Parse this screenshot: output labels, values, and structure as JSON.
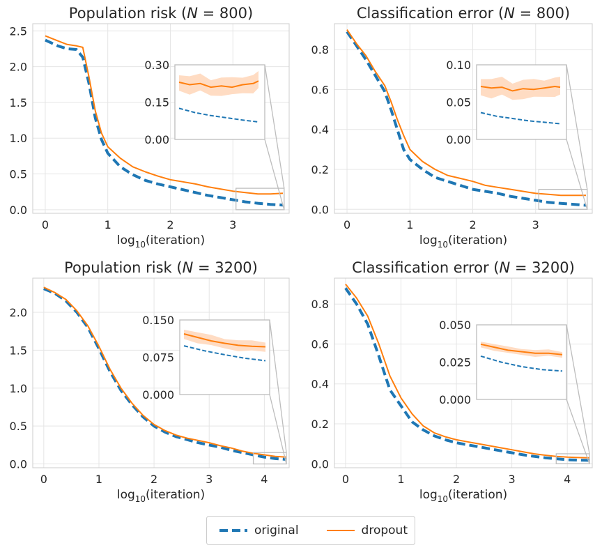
{
  "colors": {
    "original": "#1f77b4",
    "dropout": "#ff7f0e",
    "band": "#ffd6b8",
    "grid": "#e5e5e5",
    "frame": "#bdbdbd"
  },
  "legend": {
    "original": "original",
    "dropout": "dropout"
  },
  "chart_data": [
    {
      "type": "line",
      "title": "Population risk (N = 800)",
      "title_prefix": "Population risk (",
      "title_n": "N",
      "title_value": " = 800)",
      "xlabel_main": "log",
      "xlabel_sub": "10",
      "xlabel_suffix": "(iteration)",
      "xlim": [
        -0.2,
        3.9
      ],
      "ylim": [
        -0.05,
        2.6
      ],
      "xticks": [
        0,
        1,
        2,
        3
      ],
      "xtick_labels": [
        "0",
        "1",
        "2",
        "3"
      ],
      "yticks": [
        0,
        0.5,
        1,
        1.5,
        2,
        2.5
      ],
      "ytick_labels": [
        "0.0",
        "0.5",
        "1.0",
        "1.5",
        "2.0",
        "2.5"
      ],
      "series": [
        {
          "name": "original",
          "x": [
            0,
            0.2,
            0.35,
            0.5,
            0.6,
            0.7,
            0.8,
            0.9,
            1.0,
            1.2,
            1.4,
            1.6,
            1.8,
            2.0,
            2.2,
            2.4,
            2.6,
            2.8,
            3.0,
            3.2,
            3.4,
            3.6,
            3.8
          ],
          "y": [
            2.37,
            2.29,
            2.25,
            2.24,
            2.13,
            1.76,
            1.28,
            0.98,
            0.79,
            0.6,
            0.49,
            0.41,
            0.36,
            0.32,
            0.28,
            0.24,
            0.2,
            0.17,
            0.14,
            0.11,
            0.09,
            0.075,
            0.065
          ]
        },
        {
          "name": "dropout",
          "x": [
            0,
            0.2,
            0.35,
            0.5,
            0.6,
            0.7,
            0.8,
            0.9,
            1.0,
            1.2,
            1.4,
            1.6,
            1.8,
            2.0,
            2.2,
            2.4,
            2.6,
            2.8,
            3.0,
            3.2,
            3.4,
            3.6,
            3.8
          ],
          "y": [
            2.43,
            2.36,
            2.31,
            2.29,
            2.27,
            1.85,
            1.38,
            1.07,
            0.88,
            0.72,
            0.6,
            0.53,
            0.47,
            0.42,
            0.39,
            0.36,
            0.32,
            0.29,
            0.26,
            0.24,
            0.22,
            0.22,
            0.23
          ]
        }
      ],
      "inset": {
        "xlim": [
          3.05,
          3.82
        ],
        "ylim": [
          0,
          0.3
        ],
        "yticks": [
          0,
          0.15,
          0.3
        ],
        "ytick_labels": [
          "0.00",
          "0.15",
          "0.30"
        ],
        "original": {
          "x": [
            3.05,
            3.2,
            3.35,
            3.5,
            3.65,
            3.8
          ],
          "y": [
            0.125,
            0.108,
            0.096,
            0.087,
            0.078,
            0.07
          ]
        },
        "dropout": {
          "x": [
            3.05,
            3.15,
            3.25,
            3.35,
            3.45,
            3.55,
            3.65,
            3.75,
            3.8
          ],
          "y": [
            0.23,
            0.22,
            0.225,
            0.21,
            0.215,
            0.21,
            0.22,
            0.225,
            0.235
          ]
        },
        "band_width": 0.04
      }
    },
    {
      "type": "line",
      "title": "Classification error (N = 800)",
      "title_prefix": "Classification error (",
      "title_n": "N",
      "title_value": " = 800)",
      "xlabel_main": "log",
      "xlabel_sub": "10",
      "xlabel_suffix": "(iteration)",
      "xlim": [
        -0.2,
        3.9
      ],
      "ylim": [
        -0.02,
        0.93
      ],
      "xticks": [
        0,
        1,
        2,
        3
      ],
      "xtick_labels": [
        "0",
        "1",
        "2",
        "3"
      ],
      "yticks": [
        0,
        0.2,
        0.4,
        0.6,
        0.8
      ],
      "ytick_labels": [
        "0.0",
        "0.2",
        "0.4",
        "0.6",
        "0.8"
      ],
      "series": [
        {
          "name": "original",
          "x": [
            0,
            0.15,
            0.3,
            0.45,
            0.6,
            0.7,
            0.8,
            0.9,
            1.0,
            1.2,
            1.4,
            1.6,
            1.8,
            2.0,
            2.2,
            2.4,
            2.6,
            2.8,
            3.0,
            3.2,
            3.4,
            3.6,
            3.8
          ],
          "y": [
            0.89,
            0.82,
            0.75,
            0.67,
            0.59,
            0.5,
            0.4,
            0.3,
            0.25,
            0.2,
            0.16,
            0.14,
            0.12,
            0.1,
            0.09,
            0.08,
            0.065,
            0.055,
            0.045,
            0.035,
            0.03,
            0.025,
            0.02
          ]
        },
        {
          "name": "dropout",
          "x": [
            0,
            0.15,
            0.3,
            0.45,
            0.6,
            0.7,
            0.8,
            0.9,
            1.0,
            1.2,
            1.4,
            1.6,
            1.8,
            2.0,
            2.2,
            2.4,
            2.6,
            2.8,
            3.0,
            3.2,
            3.4,
            3.6,
            3.8
          ],
          "y": [
            0.9,
            0.83,
            0.77,
            0.69,
            0.62,
            0.54,
            0.45,
            0.37,
            0.3,
            0.24,
            0.2,
            0.17,
            0.155,
            0.14,
            0.12,
            0.11,
            0.1,
            0.09,
            0.08,
            0.075,
            0.07,
            0.07,
            0.07
          ]
        }
      ],
      "inset": {
        "xlim": [
          3.05,
          3.82
        ],
        "ylim": [
          0,
          0.1
        ],
        "yticks": [
          0,
          0.05,
          0.1
        ],
        "ytick_labels": [
          "0.00",
          "0.05",
          "0.10"
        ],
        "original": {
          "x": [
            3.05,
            3.2,
            3.35,
            3.5,
            3.65,
            3.8
          ],
          "y": [
            0.036,
            0.031,
            0.028,
            0.025,
            0.023,
            0.021
          ]
        },
        "dropout": {
          "x": [
            3.05,
            3.15,
            3.25,
            3.35,
            3.45,
            3.55,
            3.65,
            3.75,
            3.8
          ],
          "y": [
            0.071,
            0.069,
            0.07,
            0.065,
            0.068,
            0.067,
            0.069,
            0.071,
            0.07
          ]
        },
        "band_width": 0.014
      }
    },
    {
      "type": "line",
      "title": "Population risk (N = 3200)",
      "title_prefix": "Population risk (",
      "title_n": "N",
      "title_value": " = 3200)",
      "xlabel_main": "log",
      "xlabel_sub": "10",
      "xlabel_suffix": "(iteration)",
      "xlim": [
        -0.2,
        4.45
      ],
      "ylim": [
        -0.05,
        2.45
      ],
      "xticks": [
        0,
        1,
        2,
        3,
        4
      ],
      "xtick_labels": [
        "0",
        "1",
        "2",
        "3",
        "4"
      ],
      "yticks": [
        0,
        0.5,
        1,
        1.5,
        2
      ],
      "ytick_labels": [
        "0.0",
        "0.5",
        "1.0",
        "1.5",
        "2.0"
      ],
      "series": [
        {
          "name": "original",
          "x": [
            0,
            0.2,
            0.4,
            0.6,
            0.8,
            1.0,
            1.2,
            1.4,
            1.6,
            1.8,
            2.0,
            2.2,
            2.4,
            2.6,
            2.8,
            3.0,
            3.2,
            3.4,
            3.6,
            3.8,
            4.0,
            4.2,
            4.4
          ],
          "y": [
            2.31,
            2.25,
            2.15,
            2.0,
            1.8,
            1.52,
            1.22,
            0.97,
            0.78,
            0.62,
            0.5,
            0.42,
            0.36,
            0.32,
            0.28,
            0.25,
            0.22,
            0.18,
            0.15,
            0.12,
            0.09,
            0.07,
            0.06
          ]
        },
        {
          "name": "dropout",
          "x": [
            0,
            0.2,
            0.4,
            0.6,
            0.8,
            1.0,
            1.2,
            1.4,
            1.6,
            1.8,
            2.0,
            2.2,
            2.4,
            2.6,
            2.8,
            3.0,
            3.2,
            3.4,
            3.6,
            3.8,
            4.0,
            4.2,
            4.4
          ],
          "y": [
            2.33,
            2.26,
            2.17,
            2.02,
            1.82,
            1.55,
            1.25,
            1.0,
            0.8,
            0.64,
            0.52,
            0.44,
            0.38,
            0.34,
            0.31,
            0.28,
            0.24,
            0.21,
            0.17,
            0.14,
            0.12,
            0.1,
            0.09
          ]
        }
      ],
      "inset": {
        "xlim": [
          3.8,
          4.4
        ],
        "ylim": [
          0,
          0.15
        ],
        "yticks": [
          0,
          0.075,
          0.15
        ],
        "ytick_labels": [
          "0.000",
          "0.075",
          "0.150"
        ],
        "original": {
          "x": [
            3.8,
            3.95,
            4.1,
            4.25,
            4.4
          ],
          "y": [
            0.098,
            0.088,
            0.08,
            0.073,
            0.068
          ]
        },
        "dropout": {
          "x": [
            3.8,
            3.9,
            4.0,
            4.1,
            4.2,
            4.3,
            4.4
          ],
          "y": [
            0.122,
            0.115,
            0.108,
            0.103,
            0.099,
            0.097,
            0.096
          ]
        },
        "band_width": 0.012
      }
    },
    {
      "type": "line",
      "title": "Classification error (N = 3200)",
      "title_prefix": "Classification error (",
      "title_n": "N",
      "title_value": " = 3200)",
      "xlabel_main": "log",
      "xlabel_sub": "10",
      "xlabel_suffix": "(iteration)",
      "xlim": [
        -0.2,
        4.45
      ],
      "ylim": [
        -0.02,
        0.93
      ],
      "xticks": [
        0,
        1,
        2,
        3,
        4
      ],
      "xtick_labels": [
        "0",
        "1",
        "2",
        "3",
        "4"
      ],
      "yticks": [
        0,
        0.2,
        0.4,
        0.6,
        0.8
      ],
      "ytick_labels": [
        "0.0",
        "0.2",
        "0.4",
        "0.6",
        "0.8"
      ],
      "series": [
        {
          "name": "original",
          "x": [
            0,
            0.2,
            0.4,
            0.6,
            0.8,
            1.0,
            1.2,
            1.4,
            1.6,
            1.8,
            2.0,
            2.2,
            2.4,
            2.6,
            2.8,
            3.0,
            3.2,
            3.4,
            3.6,
            3.8,
            4.0,
            4.2,
            4.4
          ],
          "y": [
            0.88,
            0.8,
            0.7,
            0.54,
            0.37,
            0.29,
            0.21,
            0.17,
            0.14,
            0.12,
            0.105,
            0.095,
            0.085,
            0.075,
            0.065,
            0.055,
            0.045,
            0.037,
            0.03,
            0.025,
            0.02,
            0.018,
            0.017
          ]
        },
        {
          "name": "dropout",
          "x": [
            0,
            0.2,
            0.4,
            0.6,
            0.8,
            1.0,
            1.2,
            1.4,
            1.6,
            1.8,
            2.0,
            2.2,
            2.4,
            2.6,
            2.8,
            3.0,
            3.2,
            3.4,
            3.6,
            3.8,
            4.0,
            4.2,
            4.4
          ],
          "y": [
            0.9,
            0.83,
            0.74,
            0.6,
            0.44,
            0.33,
            0.25,
            0.19,
            0.155,
            0.135,
            0.12,
            0.11,
            0.1,
            0.09,
            0.08,
            0.07,
            0.06,
            0.05,
            0.043,
            0.037,
            0.033,
            0.031,
            0.03
          ]
        }
      ],
      "inset": {
        "xlim": [
          3.8,
          4.4
        ],
        "ylim": [
          0,
          0.05
        ],
        "yticks": [
          0,
          0.025,
          0.05
        ],
        "ytick_labels": [
          "0.000",
          "0.025",
          "0.050"
        ],
        "original": {
          "x": [
            3.8,
            3.95,
            4.1,
            4.25,
            4.4
          ],
          "y": [
            0.029,
            0.025,
            0.022,
            0.02,
            0.019
          ]
        },
        "dropout": {
          "x": [
            3.8,
            3.9,
            4.0,
            4.1,
            4.2,
            4.3,
            4.4
          ],
          "y": [
            0.037,
            0.035,
            0.033,
            0.032,
            0.031,
            0.031,
            0.03
          ]
        },
        "band_width": 0.0025
      }
    }
  ]
}
